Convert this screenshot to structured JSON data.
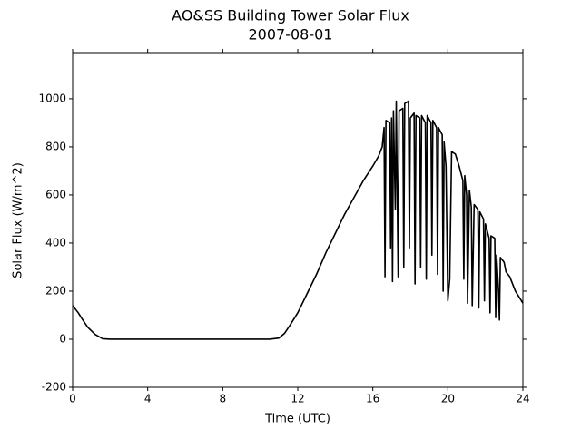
{
  "chart_data": {
    "type": "line",
    "title": "AO&SS Building Tower Solar Flux",
    "subtitle": "2007-08-01",
    "x_label": "Time (UTC)",
    "y_label": "Solar Flux (W/m^2)",
    "xlim": [
      0,
      24
    ],
    "xticks": [
      0,
      4,
      8,
      12,
      16,
      20,
      24
    ],
    "ylim": [
      -200,
      1192
    ],
    "yticks": [
      -200,
      0,
      200,
      400,
      600,
      800,
      1000
    ],
    "color": "#000000",
    "x": [
      0,
      0.3,
      0.5,
      0.8,
      1.2,
      1.6,
      2,
      4,
      6,
      8,
      10,
      10.5,
      11,
      11.3,
      11.6,
      12,
      12.5,
      13,
      13.5,
      14,
      14.5,
      15,
      15.5,
      16,
      16.3,
      16.5,
      16.6,
      16.65,
      16.7,
      16.9,
      16.95,
      17.0,
      17.05,
      17.1,
      17.2,
      17.25,
      17.35,
      17.4,
      17.6,
      17.65,
      17.7,
      17.9,
      17.95,
      18.0,
      18.2,
      18.25,
      18.3,
      18.5,
      18.55,
      18.6,
      18.8,
      18.85,
      18.9,
      19.1,
      19.15,
      19.2,
      19.4,
      19.45,
      19.5,
      19.7,
      19.75,
      19.8,
      19.9,
      20.0,
      20.1,
      20.2,
      20.4,
      20.6,
      20.8,
      20.85,
      20.9,
      21.0,
      21.05,
      21.15,
      21.25,
      21.3,
      21.4,
      21.6,
      21.65,
      21.7,
      21.9,
      21.95,
      22.0,
      22.2,
      22.25,
      22.3,
      22.5,
      22.55,
      22.6,
      22.7,
      22.75,
      22.8,
      23.0,
      23.1,
      23.3,
      23.6,
      24
    ],
    "values": [
      140,
      110,
      85,
      50,
      20,
      2,
      0,
      0,
      0,
      0,
      0,
      0,
      5,
      25,
      60,
      110,
      190,
      270,
      360,
      440,
      520,
      590,
      660,
      720,
      760,
      800,
      880,
      260,
      910,
      900,
      380,
      920,
      240,
      950,
      540,
      990,
      260,
      950,
      960,
      300,
      980,
      990,
      380,
      920,
      940,
      230,
      930,
      920,
      300,
      930,
      900,
      250,
      930,
      900,
      350,
      910,
      880,
      270,
      880,
      850,
      200,
      820,
      720,
      160,
      250,
      780,
      770,
      720,
      660,
      250,
      680,
      600,
      150,
      620,
      550,
      140,
      560,
      540,
      130,
      530,
      500,
      160,
      480,
      420,
      110,
      430,
      420,
      90,
      350,
      200,
      80,
      340,
      320,
      280,
      260,
      200,
      150
    ]
  }
}
